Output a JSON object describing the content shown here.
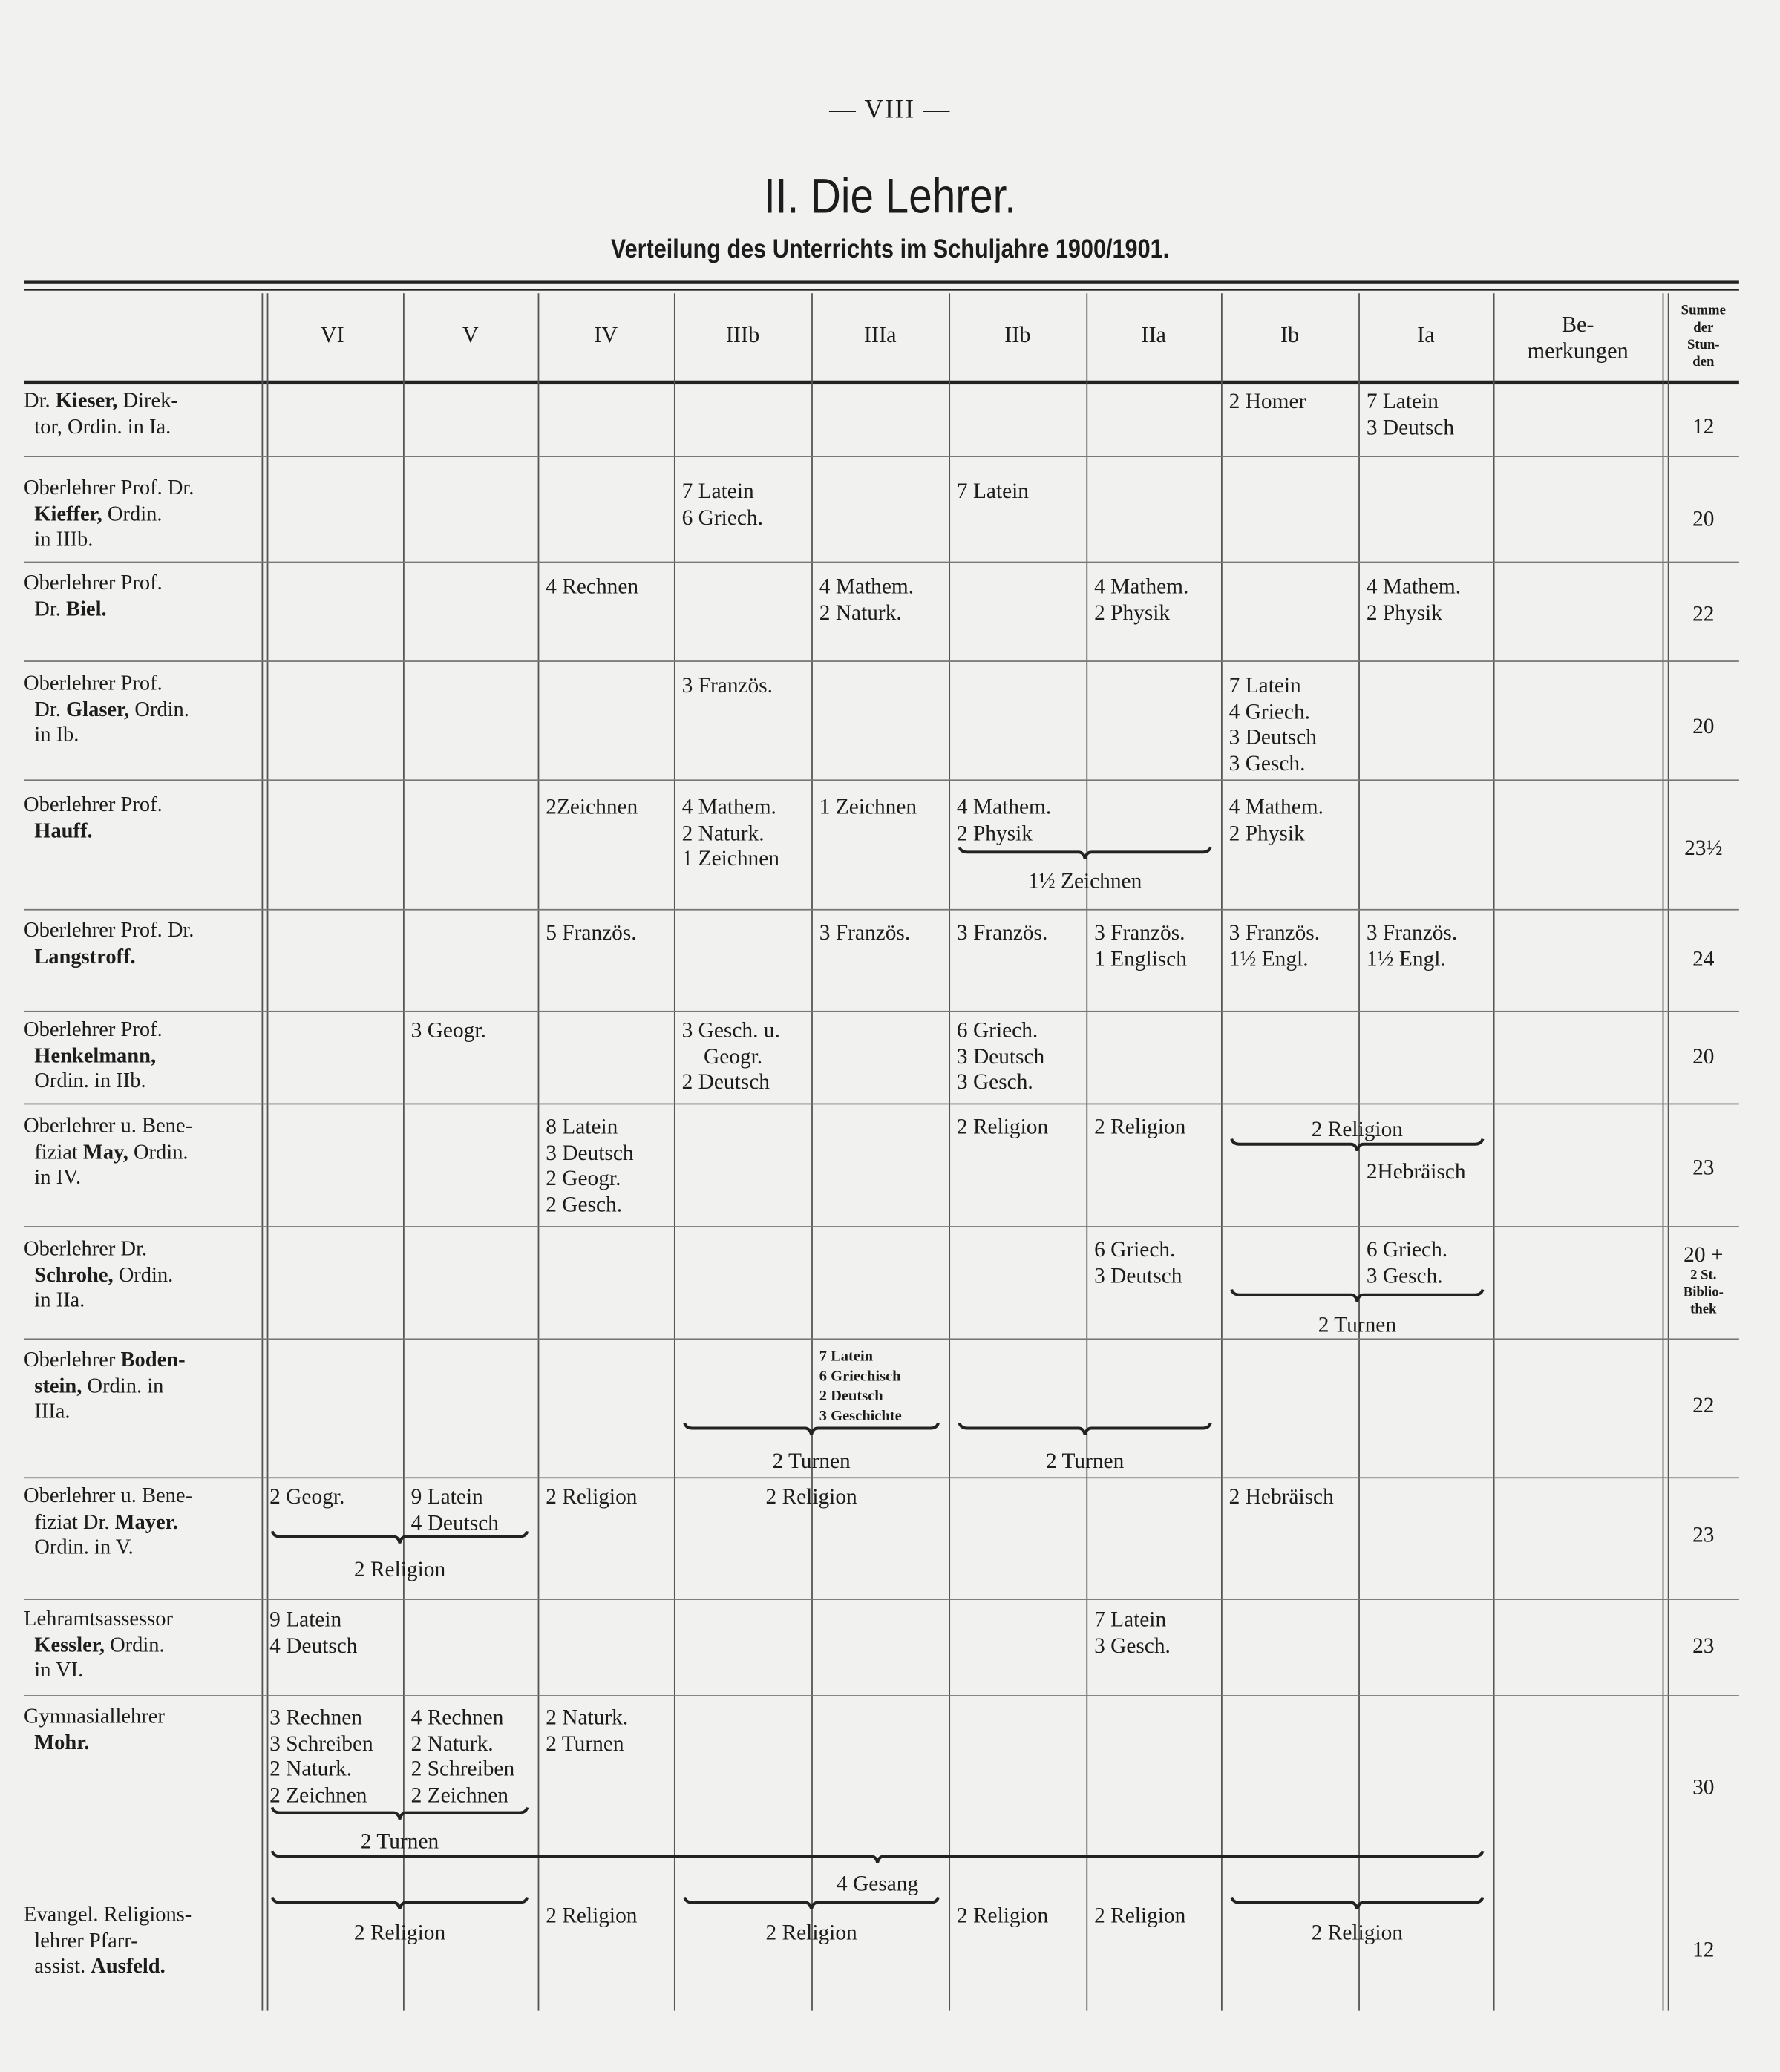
{
  "page_number": "— VIII —",
  "title": "II. Die Lehrer.",
  "subtitle": "Verteilung des Unterrichts im Schuljahre 1900/1901.",
  "columns": [
    {
      "key": "VI",
      "label": "VI"
    },
    {
      "key": "V",
      "label": "V"
    },
    {
      "key": "IV",
      "label": "IV"
    },
    {
      "key": "IIIb",
      "label": "IIIb"
    },
    {
      "key": "IIIa",
      "label": "IIIa"
    },
    {
      "key": "IIb",
      "label": "IIb"
    },
    {
      "key": "IIa",
      "label": "IIa"
    },
    {
      "key": "Ib",
      "label": "Ib"
    },
    {
      "key": "Ia",
      "label": "Ia"
    }
  ],
  "remarks_header": [
    "Be-",
    "merkungen"
  ],
  "sum_header": [
    "Summe",
    "der",
    "Stun-",
    "den"
  ],
  "rows": [
    {
      "name": [
        [
          {
            "t": "Dr. "
          },
          {
            "t": "Kieser,",
            "b": true
          },
          {
            "t": " Direk-"
          }
        ],
        [
          {
            "t": "  tor, Ordin. in Ia."
          }
        ]
      ],
      "cells": {
        "Ib": [
          "2 Homer"
        ],
        "Ia": [
          "7 Latein",
          "3 Deutsch"
        ]
      },
      "spans": [],
      "sum": [
        "12"
      ]
    },
    {
      "name": [
        [
          {
            "t": "Oberlehrer Prof. Dr."
          }
        ],
        [
          {
            "t": "  "
          },
          {
            "t": "Kieffer,",
            "b": true
          },
          {
            "t": " Ordin."
          }
        ],
        [
          {
            "t": "  in IIIb."
          }
        ]
      ],
      "cells": {
        "IIIb": [
          "7 Latein",
          "6 Griech."
        ],
        "IIb": [
          "7 Latein"
        ]
      },
      "spans": [],
      "sum": [
        "20"
      ]
    },
    {
      "name": [
        [
          {
            "t": "Oberlehrer Prof."
          }
        ],
        [
          {
            "t": "  Dr. "
          },
          {
            "t": "Biel.",
            "b": true
          }
        ]
      ],
      "cells": {
        "IV": [
          "4 Rechnen"
        ],
        "IIIa": [
          "4 Mathem.",
          "2 Naturk."
        ],
        "IIa": [
          "4 Mathem.",
          "2 Physik"
        ],
        "Ia": [
          "4 Mathem.",
          "2 Physik"
        ]
      },
      "spans": [],
      "sum": [
        "22"
      ]
    },
    {
      "name": [
        [
          {
            "t": "Oberlehrer Prof."
          }
        ],
        [
          {
            "t": "  Dr. "
          },
          {
            "t": "Glaser,",
            "b": true
          },
          {
            "t": " Ordin."
          }
        ],
        [
          {
            "t": "  in Ib."
          }
        ]
      ],
      "cells": {
        "IIIb": [
          "3 Französ."
        ],
        "Ib": [
          "7 Latein",
          "4 Griech.",
          "3 Deutsch",
          "3 Gesch."
        ]
      },
      "spans": [],
      "sum": [
        "20"
      ]
    },
    {
      "name": [
        [
          {
            "t": "Oberlehrer Prof."
          }
        ],
        [
          {
            "t": "  "
          },
          {
            "t": "Hauff.",
            "b": true
          }
        ]
      ],
      "cells": {
        "IV": [
          "2Zeichnen"
        ],
        "IIIb": [
          "4 Mathem.",
          "2 Naturk.",
          "1 Zeichnen"
        ],
        "IIIa": [
          "1 Zeichnen"
        ],
        "IIb": [
          "4 Mathem.",
          "2 Physik"
        ],
        "Ib": [
          "4 Mathem.",
          "2 Physik"
        ]
      },
      "spans": [
        {
          "from": "IIb",
          "to": "IIa",
          "text": "1½ Zeichnen"
        }
      ],
      "sum": [
        "23½"
      ]
    },
    {
      "name": [
        [
          {
            "t": "Oberlehrer Prof. Dr."
          }
        ],
        [
          {
            "t": "  "
          },
          {
            "t": "Langstroff.",
            "b": true
          }
        ]
      ],
      "cells": {
        "IV": [
          "5 Französ."
        ],
        "IIIa": [
          "3 Französ."
        ],
        "IIb": [
          "3 Französ."
        ],
        "IIa": [
          "3 Französ.",
          "1 Englisch"
        ],
        "Ib": [
          "3 Französ.",
          "1½ Engl."
        ],
        "Ia": [
          "3 Französ.",
          "1½ Engl."
        ]
      },
      "spans": [],
      "sum": [
        "24"
      ]
    },
    {
      "name": [
        [
          {
            "t": "Oberlehrer Prof."
          }
        ],
        [
          {
            "t": "  "
          },
          {
            "t": "Henkelmann,",
            "b": true
          }
        ],
        [
          {
            "t": "  Ordin. in IIb."
          }
        ]
      ],
      "cells": {
        "V": [
          "3 Geogr."
        ],
        "IIIb": [
          "3 Gesch. u.",
          "    Geogr.",
          "2 Deutsch"
        ],
        "IIb": [
          "6 Griech.",
          "3 Deutsch",
          "3 Gesch."
        ]
      },
      "spans": [],
      "sum": [
        "20"
      ]
    },
    {
      "name": [
        [
          {
            "t": "Oberlehrer u. Bene-"
          }
        ],
        [
          {
            "t": "  fiziat "
          },
          {
            "t": "May,",
            "b": true
          },
          {
            "t": " Ordin."
          }
        ],
        [
          {
            "t": "  in IV."
          }
        ]
      ],
      "cells": {
        "IV": [
          "8 Latein",
          "3 Deutsch",
          "2 Geogr.",
          "2 Gesch."
        ],
        "IIb": [
          "2 Religion"
        ],
        "IIa": [
          "2 Religion"
        ],
        "Ia": [
          "2Hebräisch"
        ]
      },
      "spans": [
        {
          "from": "Ib",
          "to": "Ia",
          "text": "2 Religion"
        }
      ],
      "sum": [
        "23"
      ]
    },
    {
      "name": [
        [
          {
            "t": "Oberlehrer Dr."
          }
        ],
        [
          {
            "t": "  "
          },
          {
            "t": "Schrohe,",
            "b": true
          },
          {
            "t": " Ordin."
          }
        ],
        [
          {
            "t": "  in IIa."
          }
        ]
      ],
      "cells": {
        "IIa": [
          "6 Griech.",
          "3 Deutsch"
        ],
        "Ia": [
          "6 Griech.",
          "3 Gesch."
        ]
      },
      "spans": [
        {
          "from": "Ib",
          "to": "Ia",
          "text": "2 Turnen"
        }
      ],
      "sum": [
        "20 +",
        "2 St.",
        "Biblio-",
        "thek"
      ]
    },
    {
      "name": [
        [
          {
            "t": "Oberlehrer "
          },
          {
            "t": "Boden-",
            "b": true
          }
        ],
        [
          {
            "t": "  "
          },
          {
            "t": "stein,",
            "b": true
          },
          {
            "t": " Ordin. in"
          }
        ],
        [
          {
            "t": "  IIIa."
          }
        ]
      ],
      "cells": {
        "IIIa": [
          "7 Latein",
          "6 Griechisch",
          "2 Deutsch",
          "3 Geschichte"
        ]
      },
      "spans": [
        {
          "from": "IIIb",
          "to": "IIIa",
          "text": "2 Turnen"
        },
        {
          "from": "IIb",
          "to": "IIa",
          "text": "2 Turnen"
        }
      ],
      "sum": [
        "22"
      ]
    },
    {
      "name": [
        [
          {
            "t": "Oberlehrer u. Bene-"
          }
        ],
        [
          {
            "t": "  fiziat Dr. "
          },
          {
            "t": "Mayer.",
            "b": true
          }
        ],
        [
          {
            "t": "  Ordin. in V."
          }
        ]
      ],
      "cells": {
        "VI": [
          "2 Geogr."
        ],
        "V": [
          "9 Latein",
          "4 Deutsch"
        ],
        "IV": [
          "2 Religion"
        ],
        "Ib": [
          "2 Hebräisch"
        ]
      },
      "spans": [
        {
          "from": "IIIb",
          "to": "IIIa",
          "text": "2 Religion",
          "nobrace": true
        },
        {
          "from": "VI",
          "to": "V",
          "text": "2 Religion"
        }
      ],
      "sum": [
        "23"
      ]
    },
    {
      "name": [
        [
          {
            "t": "Lehramtsassessor"
          }
        ],
        [
          {
            "t": "  "
          },
          {
            "t": "Kessler,",
            "b": true
          },
          {
            "t": " Ordin."
          }
        ],
        [
          {
            "t": "  in VI."
          }
        ]
      ],
      "cells": {
        "VI": [
          "9 Latein",
          "4 Deutsch"
        ],
        "IIa": [
          "7 Latein",
          "3 Gesch."
        ]
      },
      "spans": [],
      "sum": [
        "23"
      ]
    },
    {
      "name": [
        [
          {
            "t": "Gymnasiallehrer"
          }
        ],
        [
          {
            "t": "  "
          },
          {
            "t": "Mohr.",
            "b": true
          }
        ]
      ],
      "cells": {
        "VI": [
          "3 Rechnen",
          "3 Schreiben",
          "2 Naturk.",
          "2 Zeichnen"
        ],
        "V": [
          "4 Rechnen",
          "2 Naturk.",
          "2 Schreiben",
          "2 Zeichnen"
        ],
        "IV": [
          "2 Naturk.",
          "2 Turnen"
        ]
      },
      "spans": [
        {
          "from": "VI",
          "to": "V",
          "text": "2 Turnen"
        },
        {
          "from": "VI",
          "to": "Ia",
          "text": "4 Gesang"
        }
      ],
      "sum": [
        "30"
      ]
    },
    {
      "name": [
        [
          {
            "t": "Evangel. Religions-"
          }
        ],
        [
          {
            "t": "  lehrer Pfarr-"
          }
        ],
        [
          {
            "t": "  assist. "
          },
          {
            "t": "Ausfeld.",
            "b": true
          }
        ]
      ],
      "cells": {
        "IV": [
          "2 Religion"
        ],
        "IIb": [
          "2 Religion"
        ],
        "IIa": [
          "2 Religion"
        ]
      },
      "spans": [
        {
          "from": "VI",
          "to": "V",
          "text": "2 Religion"
        },
        {
          "from": "IIIb",
          "to": "IIIa",
          "text": "2 Religion"
        },
        {
          "from": "Ib",
          "to": "Ia",
          "text": "2 Religion"
        }
      ],
      "sum": [
        "12"
      ]
    }
  ]
}
